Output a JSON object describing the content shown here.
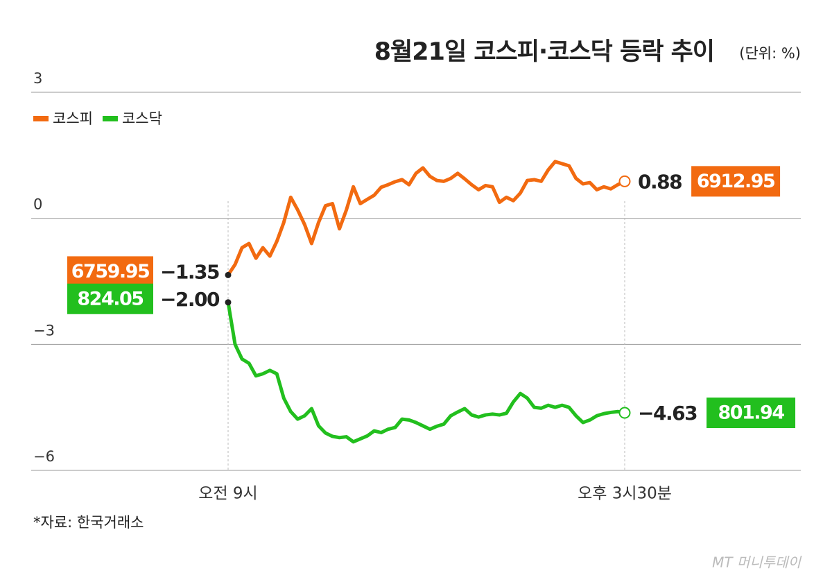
{
  "chart_data": {
    "type": "line",
    "title": "8월21일 코스피·코스닥 등락 추이",
    "unit": "(단위: %)",
    "source": "*자료: 한국거래소",
    "logo": "MT 머니투데이",
    "categories": [
      "오전 9시",
      null,
      null,
      null,
      null,
      null,
      null,
      null,
      null,
      null,
      null,
      null,
      null,
      null,
      null,
      null,
      null,
      null,
      null,
      null,
      null,
      null,
      null,
      null,
      null,
      null,
      null,
      null,
      null,
      null,
      null,
      null,
      null,
      null,
      null,
      null,
      null,
      null,
      null,
      null,
      null,
      null,
      null,
      null,
      null,
      null,
      null,
      null,
      null,
      null,
      null,
      null,
      null,
      null,
      null,
      null,
      null,
      "오후 3시30분"
    ],
    "ylim": [
      -6,
      3
    ],
    "yticks": [
      3,
      0,
      {
        "value": -3,
        "label": "−3"
      },
      {
        "value": -6,
        "label": "−6"
      }
    ],
    "grid": true,
    "series": [
      {
        "name": "코스피",
        "color": "#f26a10",
        "index_start": 6759.95,
        "index_end": 6912.95,
        "values": [
          -1.35,
          -1.1,
          -0.7,
          -0.6,
          -0.95,
          -0.7,
          -0.9,
          -0.55,
          -0.1,
          0.5,
          0.2,
          -0.15,
          -0.6,
          -0.1,
          0.3,
          0.35,
          -0.25,
          0.2,
          0.75,
          0.35,
          0.45,
          0.55,
          0.74,
          0.8,
          0.87,
          0.92,
          0.8,
          1.07,
          1.2,
          1.0,
          0.9,
          0.88,
          0.95,
          1.07,
          0.94,
          0.8,
          0.68,
          0.78,
          0.75,
          0.38,
          0.5,
          0.42,
          0.6,
          0.9,
          0.92,
          0.88,
          1.15,
          1.35,
          1.3,
          1.25,
          0.95,
          0.82,
          0.85,
          0.68,
          0.75,
          0.7,
          0.8,
          0.88
        ],
        "value_labels": [
          "−1.35",
          null,
          null,
          null,
          null,
          null,
          null,
          null,
          null,
          null,
          null,
          null,
          null,
          null,
          null,
          null,
          null,
          null,
          null,
          null,
          null,
          null,
          null,
          null,
          null,
          null,
          null,
          null,
          null,
          null,
          null,
          null,
          null,
          null,
          null,
          null,
          null,
          null,
          null,
          null,
          null,
          null,
          null,
          null,
          null,
          null,
          null,
          null,
          null,
          null,
          null,
          null,
          null,
          null,
          null,
          null,
          null,
          "0.88"
        ]
      },
      {
        "name": "코스닥",
        "color": "#22bf1e",
        "index_start": 824.05,
        "index_end": 801.94,
        "values": [
          -2.0,
          -3.0,
          -3.35,
          -3.45,
          -3.75,
          -3.7,
          -3.62,
          -3.7,
          -4.28,
          -4.6,
          -4.78,
          -4.7,
          -4.53,
          -4.94,
          -5.11,
          -5.19,
          -5.22,
          -5.2,
          -5.32,
          -5.25,
          -5.18,
          -5.06,
          -5.1,
          -5.02,
          -4.98,
          -4.78,
          -4.8,
          -4.86,
          -4.94,
          -5.02,
          -4.95,
          -4.9,
          -4.7,
          -4.61,
          -4.53,
          -4.68,
          -4.73,
          -4.68,
          -4.66,
          -4.68,
          -4.64,
          -4.37,
          -4.17,
          -4.28,
          -4.5,
          -4.52,
          -4.45,
          -4.5,
          -4.45,
          -4.5,
          -4.7,
          -4.86,
          -4.8,
          -4.7,
          -4.65,
          -4.62,
          -4.6,
          -4.63
        ],
        "value_labels": [
          "−2.00",
          null,
          null,
          null,
          null,
          null,
          null,
          null,
          null,
          null,
          null,
          null,
          null,
          null,
          null,
          null,
          null,
          null,
          null,
          null,
          null,
          null,
          null,
          null,
          null,
          null,
          null,
          null,
          null,
          null,
          null,
          null,
          null,
          null,
          null,
          null,
          null,
          null,
          null,
          null,
          null,
          null,
          null,
          null,
          null,
          null,
          null,
          null,
          null,
          null,
          null,
          null,
          null,
          null,
          null,
          null,
          null,
          "−4.63"
        ]
      }
    ]
  }
}
